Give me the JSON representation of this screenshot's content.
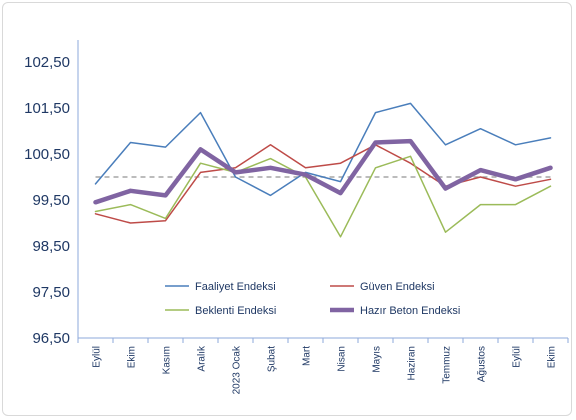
{
  "chart_data": {
    "type": "line",
    "title": "",
    "xlabel": "",
    "ylabel": "",
    "ylim": [
      96.5,
      102.5
    ],
    "yticks": [
      "102,50",
      "101,50",
      "100,50",
      "99,50",
      "98,50",
      "97,50",
      "96,50"
    ],
    "categories": [
      "Eylül",
      "Ekim",
      "Kasım",
      "Aralık",
      "2023 Ocak",
      "Şubat",
      "Mart",
      "Nisan",
      "Mayıs",
      "Haziran",
      "Temmuz",
      "Ağustos",
      "Eylül",
      "Ekim"
    ],
    "reference_line": {
      "value": 100,
      "color": "#a6a6a6",
      "style": "dashed"
    },
    "grid": false,
    "legend_position": "bottom-inside",
    "series": [
      {
        "name": "Faaliyet Endeksi",
        "color": "#4a7ebb",
        "values": [
          99.85,
          100.75,
          100.65,
          101.4,
          100.0,
          99.6,
          100.1,
          99.9,
          101.4,
          101.6,
          100.7,
          101.05,
          100.7,
          100.85
        ]
      },
      {
        "name": "Güven Endeksi",
        "color": "#be4b48",
        "values": [
          99.2,
          99.0,
          99.05,
          100.1,
          100.2,
          100.7,
          100.2,
          100.3,
          100.7,
          100.3,
          99.8,
          100.0,
          99.8,
          99.95
        ]
      },
      {
        "name": "Beklenti Endeksi",
        "color": "#9bbb59",
        "values": [
          99.25,
          99.4,
          99.1,
          100.3,
          100.1,
          100.4,
          100.0,
          98.7,
          100.2,
          100.45,
          98.8,
          99.4,
          99.4,
          99.8
        ]
      },
      {
        "name": "Hazır Beton Endeksi",
        "color": "#8064a2",
        "values": [
          99.45,
          99.7,
          99.6,
          100.6,
          100.1,
          100.2,
          100.05,
          99.65,
          100.75,
          100.78,
          99.75,
          100.15,
          99.95,
          100.2
        ]
      }
    ]
  }
}
